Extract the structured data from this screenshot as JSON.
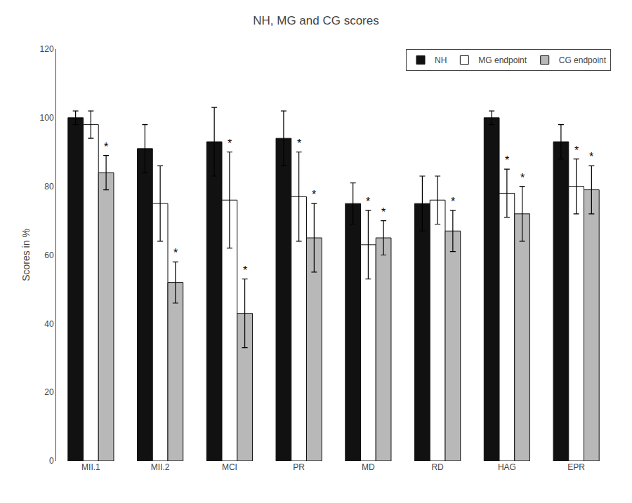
{
  "chart_data": {
    "type": "bar",
    "title": "NH, MG and CG scores",
    "ylabel": "Scores in %",
    "categories": [
      "MII.1",
      "MII.2",
      "MCI",
      "PR",
      "MD",
      "RD",
      "HAG",
      "EPR"
    ],
    "series": [
      {
        "name": "NH",
        "color": "#111111",
        "values": [
          100,
          91,
          93,
          94,
          75,
          75,
          100,
          93
        ],
        "errors": [
          2,
          7,
          10,
          8,
          6,
          8,
          2,
          5
        ]
      },
      {
        "name": "MG endpoint",
        "color": "#ffffff",
        "values": [
          98,
          75,
          76,
          77,
          63,
          76,
          78,
          80
        ],
        "errors": [
          4,
          11,
          14,
          13,
          10,
          7,
          7,
          8
        ]
      },
      {
        "name": "CG endpoint",
        "color": "#b8b8b8",
        "values": [
          84,
          52,
          43,
          65,
          65,
          67,
          72,
          79
        ],
        "errors": [
          5,
          6,
          10,
          10,
          5,
          6,
          8,
          7
        ]
      }
    ],
    "ylim": [
      0,
      120
    ],
    "yticks": [
      0,
      20,
      40,
      60,
      80,
      100,
      120
    ],
    "grid": false,
    "legend": "upper right",
    "annotations": [
      {
        "series": "CG endpoint",
        "category": "MII.1",
        "text": "*"
      },
      {
        "series": "CG endpoint",
        "category": "MII.2",
        "text": "*"
      },
      {
        "series": "MG endpoint",
        "category": "MCI",
        "text": "*"
      },
      {
        "series": "CG endpoint",
        "category": "MCI",
        "text": "*"
      },
      {
        "series": "MG endpoint",
        "category": "PR",
        "text": "*"
      },
      {
        "series": "CG endpoint",
        "category": "PR",
        "text": "*"
      },
      {
        "series": "MG endpoint",
        "category": "MD",
        "text": "*"
      },
      {
        "series": "CG endpoint",
        "category": "MD",
        "text": "*"
      },
      {
        "series": "CG endpoint",
        "category": "RD",
        "text": "*"
      },
      {
        "series": "MG endpoint",
        "category": "HAG",
        "text": "*"
      },
      {
        "series": "CG endpoint",
        "category": "HAG",
        "text": "*"
      },
      {
        "series": "MG endpoint",
        "category": "EPR",
        "text": "*"
      },
      {
        "series": "CG endpoint",
        "category": "EPR",
        "text": "*"
      }
    ]
  }
}
